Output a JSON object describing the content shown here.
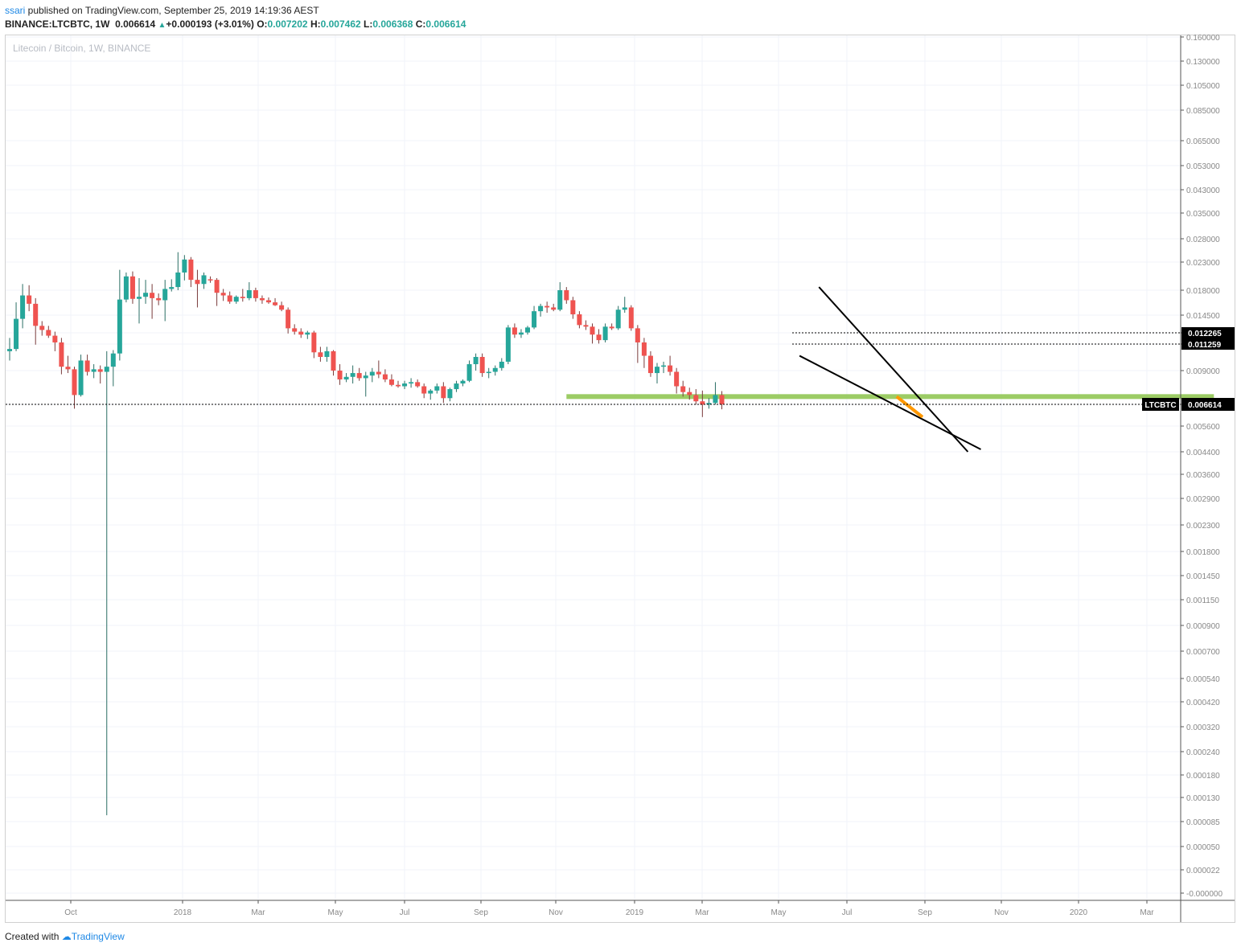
{
  "header": {
    "user": "ssari",
    "published_text": " published on TradingView.com, September 25, 2019 14:19:36 AEST",
    "symbol_line": "BINANCE:LTCBTC, 1W",
    "last_price": "0.006614",
    "change": "+0.000193 (+3.01%)",
    "open_label": "O:",
    "open": "0.007202",
    "high_label": "H:",
    "high": "0.007462",
    "low_label": "L:",
    "low": "0.006368",
    "close_label": "C:",
    "close": "0.006614"
  },
  "watermark": "Litecoin / Bitcoin, 1W, BINANCE",
  "footer": {
    "created_with": "Created with",
    "brand": "TradingView"
  },
  "colors": {
    "up": "#26a69a",
    "down": "#ef5350",
    "grid": "#f0f3fa",
    "support_zone": "#8bc34a",
    "trendline": "#000000",
    "highlight": "#ff9800"
  },
  "chart_data": {
    "type": "candlestick",
    "title": "Litecoin / Bitcoin, 1W, BINANCE",
    "y_scale": "log",
    "y_ticks": [
      "0.160000",
      "0.130000",
      "0.105000",
      "0.085000",
      "0.065000",
      "0.053000",
      "0.043000",
      "0.035000",
      "0.028000",
      "0.023000",
      "0.018000",
      "0.014500",
      "0.012265",
      "0.011259",
      "0.009000",
      "0.006614",
      "0.005600",
      "0.004400",
      "0.003600",
      "0.002900",
      "0.002300",
      "0.001800",
      "0.001450",
      "0.001150",
      "0.000900",
      "0.000700",
      "0.000540",
      "0.000420",
      "0.000320",
      "0.000240",
      "0.000180",
      "0.000130",
      "0.000085",
      "0.000050",
      "0.000022",
      "-0.000000"
    ],
    "x_ticks": [
      "Oct",
      "2018",
      "Mar",
      "May",
      "Jul",
      "Sep",
      "Nov",
      "2019",
      "Mar",
      "May",
      "Jul",
      "Sep",
      "Nov",
      "2020",
      "Mar"
    ],
    "price_labels": [
      {
        "value": 0.012265,
        "text": "0.012265"
      },
      {
        "value": 0.011259,
        "text": "0.011259"
      }
    ],
    "last_price_label": {
      "symbol": "LTCBTC",
      "value": 0.006614,
      "text": "0.006614"
    },
    "candles": [
      {
        "o": 0.0106,
        "h": 0.0118,
        "l": 0.0098,
        "c": 0.0108
      },
      {
        "o": 0.0108,
        "h": 0.0162,
        "l": 0.0106,
        "c": 0.014
      },
      {
        "o": 0.014,
        "h": 0.019,
        "l": 0.0128,
        "c": 0.0172
      },
      {
        "o": 0.0172,
        "h": 0.0188,
        "l": 0.015,
        "c": 0.016
      },
      {
        "o": 0.016,
        "h": 0.0168,
        "l": 0.0112,
        "c": 0.0131
      },
      {
        "o": 0.0131,
        "h": 0.0137,
        "l": 0.012,
        "c": 0.0126
      },
      {
        "o": 0.0126,
        "h": 0.0131,
        "l": 0.0118,
        "c": 0.012
      },
      {
        "o": 0.012,
        "h": 0.0124,
        "l": 0.0106,
        "c": 0.0114
      },
      {
        "o": 0.0114,
        "h": 0.0118,
        "l": 0.0087,
        "c": 0.0093
      },
      {
        "o": 0.0093,
        "h": 0.0102,
        "l": 0.0088,
        "c": 0.0091
      },
      {
        "o": 0.0091,
        "h": 0.0093,
        "l": 0.0064,
        "c": 0.0072
      },
      {
        "o": 0.0072,
        "h": 0.0103,
        "l": 0.0071,
        "c": 0.0098
      },
      {
        "o": 0.0098,
        "h": 0.0103,
        "l": 0.0086,
        "c": 0.0089
      },
      {
        "o": 0.0089,
        "h": 0.0095,
        "l": 0.0084,
        "c": 0.0091
      },
      {
        "o": 0.0091,
        "h": 0.0094,
        "l": 0.008,
        "c": 0.0089
      },
      {
        "o": 0.0089,
        "h": 0.0106,
        "l": 9.5e-05,
        "c": 0.0093
      },
      {
        "o": 0.0093,
        "h": 0.0107,
        "l": 0.0078,
        "c": 0.0104
      },
      {
        "o": 0.0104,
        "h": 0.0215,
        "l": 0.0098,
        "c": 0.0166
      },
      {
        "o": 0.0166,
        "h": 0.021,
        "l": 0.0162,
        "c": 0.0203
      },
      {
        "o": 0.0203,
        "h": 0.0212,
        "l": 0.016,
        "c": 0.0167
      },
      {
        "o": 0.0167,
        "h": 0.02,
        "l": 0.0134,
        "c": 0.017
      },
      {
        "o": 0.017,
        "h": 0.0197,
        "l": 0.016,
        "c": 0.0176
      },
      {
        "o": 0.0176,
        "h": 0.019,
        "l": 0.014,
        "c": 0.0168
      },
      {
        "o": 0.0168,
        "h": 0.0175,
        "l": 0.0158,
        "c": 0.0165
      },
      {
        "o": 0.0165,
        "h": 0.0197,
        "l": 0.0137,
        "c": 0.0182
      },
      {
        "o": 0.0182,
        "h": 0.0198,
        "l": 0.0178,
        "c": 0.0185
      },
      {
        "o": 0.0185,
        "h": 0.025,
        "l": 0.018,
        "c": 0.021
      },
      {
        "o": 0.021,
        "h": 0.0244,
        "l": 0.0196,
        "c": 0.0235
      },
      {
        "o": 0.0235,
        "h": 0.024,
        "l": 0.0185,
        "c": 0.0197
      },
      {
        "o": 0.0197,
        "h": 0.0215,
        "l": 0.0155,
        "c": 0.019
      },
      {
        "o": 0.019,
        "h": 0.021,
        "l": 0.0182,
        "c": 0.0205
      },
      {
        "o": 0.0198,
        "h": 0.0203,
        "l": 0.0192,
        "c": 0.0197
      },
      {
        "o": 0.0197,
        "h": 0.02,
        "l": 0.0157,
        "c": 0.0176
      },
      {
        "o": 0.0176,
        "h": 0.0182,
        "l": 0.0164,
        "c": 0.0172
      },
      {
        "o": 0.0172,
        "h": 0.0178,
        "l": 0.016,
        "c": 0.0163
      },
      {
        "o": 0.0163,
        "h": 0.0172,
        "l": 0.016,
        "c": 0.017
      },
      {
        "o": 0.017,
        "h": 0.0182,
        "l": 0.0163,
        "c": 0.0168
      },
      {
        "o": 0.0168,
        "h": 0.0193,
        "l": 0.0165,
        "c": 0.018
      },
      {
        "o": 0.018,
        "h": 0.0184,
        "l": 0.0163,
        "c": 0.0168
      },
      {
        "o": 0.0168,
        "h": 0.0172,
        "l": 0.016,
        "c": 0.0165
      },
      {
        "o": 0.0165,
        "h": 0.0169,
        "l": 0.016,
        "c": 0.0162
      },
      {
        "o": 0.0162,
        "h": 0.0168,
        "l": 0.0157,
        "c": 0.0158
      },
      {
        "o": 0.0158,
        "h": 0.0163,
        "l": 0.015,
        "c": 0.0152
      },
      {
        "o": 0.0152,
        "h": 0.0155,
        "l": 0.0122,
        "c": 0.0128
      },
      {
        "o": 0.0128,
        "h": 0.0133,
        "l": 0.0121,
        "c": 0.0124
      },
      {
        "o": 0.0124,
        "h": 0.0128,
        "l": 0.0118,
        "c": 0.0121
      },
      {
        "o": 0.0121,
        "h": 0.0125,
        "l": 0.0117,
        "c": 0.0123
      },
      {
        "o": 0.0123,
        "h": 0.0125,
        "l": 0.01,
        "c": 0.0105
      },
      {
        "o": 0.0105,
        "h": 0.011,
        "l": 0.0097,
        "c": 0.0101
      },
      {
        "o": 0.0101,
        "h": 0.011,
        "l": 0.0097,
        "c": 0.0106
      },
      {
        "o": 0.0106,
        "h": 0.0107,
        "l": 0.0086,
        "c": 0.009
      },
      {
        "o": 0.009,
        "h": 0.0095,
        "l": 0.0079,
        "c": 0.0083
      },
      {
        "o": 0.0083,
        "h": 0.0088,
        "l": 0.0081,
        "c": 0.0085
      },
      {
        "o": 0.0085,
        "h": 0.0094,
        "l": 0.008,
        "c": 0.0088
      },
      {
        "o": 0.0088,
        "h": 0.0092,
        "l": 0.0082,
        "c": 0.0084
      },
      {
        "o": 0.0084,
        "h": 0.0089,
        "l": 0.0071,
        "c": 0.0086
      },
      {
        "o": 0.0086,
        "h": 0.0092,
        "l": 0.0081,
        "c": 0.0089
      },
      {
        "o": 0.0089,
        "h": 0.0098,
        "l": 0.0084,
        "c": 0.0087
      },
      {
        "o": 0.0087,
        "h": 0.0091,
        "l": 0.0081,
        "c": 0.0083
      },
      {
        "o": 0.0083,
        "h": 0.0087,
        "l": 0.0078,
        "c": 0.0079
      },
      {
        "o": 0.0079,
        "h": 0.0082,
        "l": 0.0077,
        "c": 0.0078
      },
      {
        "o": 0.0078,
        "h": 0.0082,
        "l": 0.0076,
        "c": 0.008
      },
      {
        "o": 0.008,
        "h": 0.0084,
        "l": 0.0077,
        "c": 0.0081
      },
      {
        "o": 0.0081,
        "h": 0.0083,
        "l": 0.0077,
        "c": 0.0078
      },
      {
        "o": 0.0078,
        "h": 0.008,
        "l": 0.007,
        "c": 0.0073
      },
      {
        "o": 0.0073,
        "h": 0.0076,
        "l": 0.0069,
        "c": 0.0075
      },
      {
        "o": 0.0075,
        "h": 0.008,
        "l": 0.0073,
        "c": 0.0078
      },
      {
        "o": 0.0078,
        "h": 0.0081,
        "l": 0.0067,
        "c": 0.007
      },
      {
        "o": 0.007,
        "h": 0.0077,
        "l": 0.0068,
        "c": 0.0076
      },
      {
        "o": 0.0076,
        "h": 0.0082,
        "l": 0.0074,
        "c": 0.008
      },
      {
        "o": 0.008,
        "h": 0.0083,
        "l": 0.0078,
        "c": 0.0082
      },
      {
        "o": 0.0082,
        "h": 0.0098,
        "l": 0.0081,
        "c": 0.0095
      },
      {
        "o": 0.0095,
        "h": 0.0104,
        "l": 0.009,
        "c": 0.0101
      },
      {
        "o": 0.0101,
        "h": 0.0104,
        "l": 0.0085,
        "c": 0.0088
      },
      {
        "o": 0.0088,
        "h": 0.0092,
        "l": 0.0084,
        "c": 0.0089
      },
      {
        "o": 0.0089,
        "h": 0.0094,
        "l": 0.0086,
        "c": 0.0092
      },
      {
        "o": 0.0092,
        "h": 0.01,
        "l": 0.009,
        "c": 0.0097
      },
      {
        "o": 0.0097,
        "h": 0.0132,
        "l": 0.0095,
        "c": 0.0129
      },
      {
        "o": 0.0129,
        "h": 0.0134,
        "l": 0.0118,
        "c": 0.0121
      },
      {
        "o": 0.0121,
        "h": 0.0127,
        "l": 0.0118,
        "c": 0.0123
      },
      {
        "o": 0.0123,
        "h": 0.0131,
        "l": 0.0121,
        "c": 0.0129
      },
      {
        "o": 0.0129,
        "h": 0.0157,
        "l": 0.0127,
        "c": 0.015
      },
      {
        "o": 0.015,
        "h": 0.016,
        "l": 0.0143,
        "c": 0.0157
      },
      {
        "o": 0.0157,
        "h": 0.0163,
        "l": 0.0148,
        "c": 0.0155
      },
      {
        "o": 0.0155,
        "h": 0.016,
        "l": 0.015,
        "c": 0.0152
      },
      {
        "o": 0.0152,
        "h": 0.0193,
        "l": 0.015,
        "c": 0.018
      },
      {
        "o": 0.018,
        "h": 0.0185,
        "l": 0.016,
        "c": 0.0165
      },
      {
        "o": 0.0165,
        "h": 0.017,
        "l": 0.014,
        "c": 0.0146
      },
      {
        "o": 0.0146,
        "h": 0.015,
        "l": 0.0128,
        "c": 0.0132
      },
      {
        "o": 0.0132,
        "h": 0.0138,
        "l": 0.0126,
        "c": 0.013
      },
      {
        "o": 0.013,
        "h": 0.0134,
        "l": 0.0113,
        "c": 0.0121
      },
      {
        "o": 0.0121,
        "h": 0.0127,
        "l": 0.0113,
        "c": 0.0116
      },
      {
        "o": 0.0116,
        "h": 0.0134,
        "l": 0.0114,
        "c": 0.013
      },
      {
        "o": 0.013,
        "h": 0.0134,
        "l": 0.0126,
        "c": 0.0128
      },
      {
        "o": 0.0128,
        "h": 0.0157,
        "l": 0.0126,
        "c": 0.0152
      },
      {
        "o": 0.0152,
        "h": 0.017,
        "l": 0.0148,
        "c": 0.0155
      },
      {
        "o": 0.0155,
        "h": 0.0158,
        "l": 0.0125,
        "c": 0.0128
      },
      {
        "o": 0.0128,
        "h": 0.0132,
        "l": 0.0096,
        "c": 0.0114
      },
      {
        "o": 0.0114,
        "h": 0.0118,
        "l": 0.0092,
        "c": 0.0102
      },
      {
        "o": 0.0102,
        "h": 0.0106,
        "l": 0.0085,
        "c": 0.0088
      },
      {
        "o": 0.0088,
        "h": 0.0096,
        "l": 0.008,
        "c": 0.0093
      },
      {
        "o": 0.0093,
        "h": 0.0097,
        "l": 0.0088,
        "c": 0.0094
      },
      {
        "o": 0.0094,
        "h": 0.0102,
        "l": 0.0086,
        "c": 0.0089
      },
      {
        "o": 0.0089,
        "h": 0.0092,
        "l": 0.0073,
        "c": 0.0078
      },
      {
        "o": 0.0078,
        "h": 0.0082,
        "l": 0.0071,
        "c": 0.0074
      },
      {
        "o": 0.0074,
        "h": 0.0077,
        "l": 0.0069,
        "c": 0.0072
      },
      {
        "o": 0.0072,
        "h": 0.0076,
        "l": 0.0066,
        "c": 0.0068
      },
      {
        "o": 0.0068,
        "h": 0.0075,
        "l": 0.006,
        "c": 0.0066
      },
      {
        "o": 0.0066,
        "h": 0.007,
        "l": 0.0064,
        "c": 0.0067
      },
      {
        "o": 0.0067,
        "h": 0.0081,
        "l": 0.0066,
        "c": 0.0072
      },
      {
        "o": 0.007202,
        "h": 0.007462,
        "l": 0.006368,
        "c": 0.006614
      }
    ],
    "annotations": [
      {
        "type": "horizontal-zone",
        "y": 0.0071,
        "from_week": 86,
        "to_week": 186,
        "label": ""
      },
      {
        "type": "trendline",
        "from": {
          "week": 125,
          "price": 0.0185
        },
        "to": {
          "week": 148,
          "price": 0.0044
        }
      },
      {
        "type": "trendline",
        "from": {
          "week": 122,
          "price": 0.0102
        },
        "to": {
          "week": 150,
          "price": 0.0045
        }
      },
      {
        "type": "highlight-line",
        "from": {
          "week": 137,
          "price": 0.0071
        },
        "to": {
          "week": 141,
          "price": 0.006
        }
      }
    ]
  }
}
